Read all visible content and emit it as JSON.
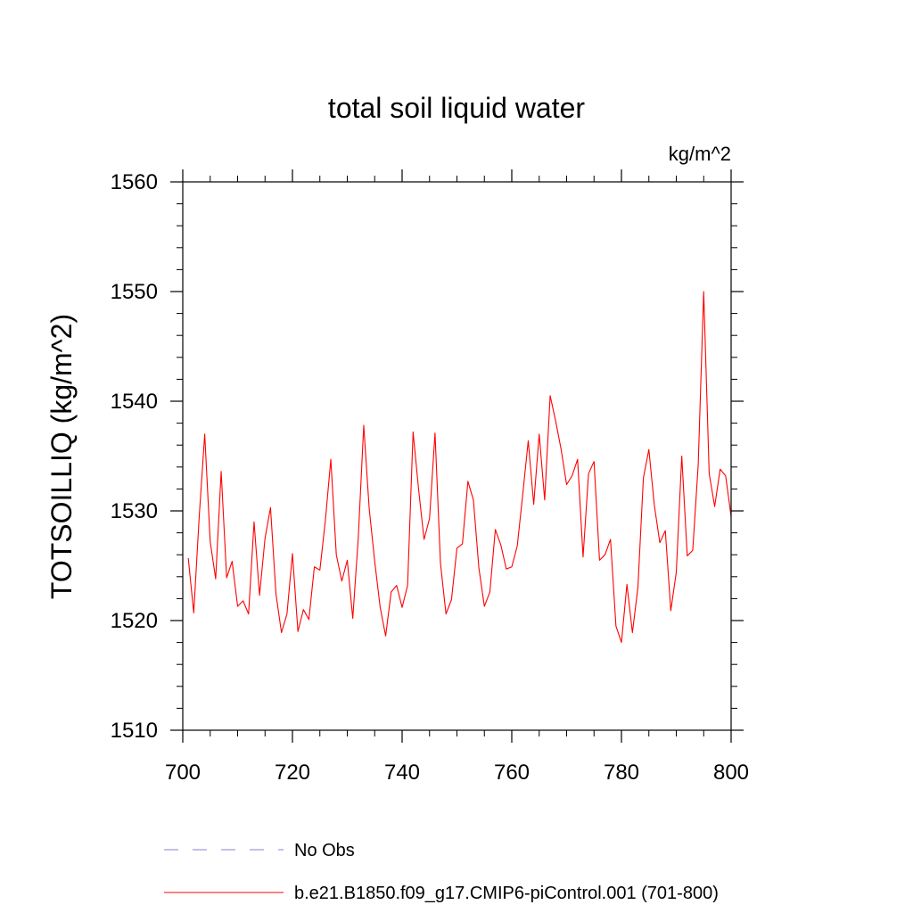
{
  "chart_data": {
    "type": "line",
    "title": "total soil liquid water",
    "units": "kg/m^2",
    "xlabel": "",
    "ylabel": "TOTSOILLIQ  (kg/m^2)",
    "xlim": [
      700,
      800
    ],
    "ylim": [
      1510,
      1560
    ],
    "x_ticks": [
      700,
      720,
      740,
      760,
      780,
      800
    ],
    "y_ticks": [
      1510,
      1520,
      1530,
      1540,
      1550,
      1560
    ],
    "x_minor_step": 5,
    "y_minor_step": 2,
    "grid": false,
    "legend_position": "bottom",
    "series": [
      {
        "name": "No Obs",
        "color": "#8a7fd0",
        "style": "dashed",
        "values": []
      },
      {
        "name": "b.e21.B1850.f09_g17.CMIP6-piControl.001 (701-800)",
        "color": "#ff0000",
        "style": "solid",
        "x": [
          701,
          702,
          703,
          704,
          705,
          706,
          707,
          708,
          709,
          710,
          711,
          712,
          713,
          714,
          715,
          716,
          717,
          718,
          719,
          720,
          721,
          722,
          723,
          724,
          725,
          726,
          727,
          728,
          729,
          730,
          731,
          732,
          733,
          734,
          735,
          736,
          737,
          738,
          739,
          740,
          741,
          742,
          743,
          744,
          745,
          746,
          747,
          748,
          749,
          750,
          751,
          752,
          753,
          754,
          755,
          756,
          757,
          758,
          759,
          760,
          761,
          762,
          763,
          764,
          765,
          766,
          767,
          768,
          769,
          770,
          771,
          772,
          773,
          774,
          775,
          776,
          777,
          778,
          779,
          780,
          781,
          782,
          783,
          784,
          785,
          786,
          787,
          788,
          789,
          790,
          791,
          792,
          793,
          794,
          795,
          796,
          797,
          798,
          799,
          800
        ],
        "values": [
          1525.7,
          1520.7,
          1529.5,
          1537.0,
          1527.2,
          1523.8,
          1533.6,
          1523.9,
          1525.4,
          1521.3,
          1521.8,
          1520.6,
          1529.0,
          1522.3,
          1527.5,
          1530.3,
          1522.4,
          1518.9,
          1520.6,
          1526.1,
          1519.0,
          1521.0,
          1520.1,
          1524.9,
          1524.6,
          1529.1,
          1534.7,
          1526.0,
          1523.6,
          1525.5,
          1520.2,
          1527.5,
          1537.8,
          1530.2,
          1525.4,
          1521.2,
          1518.6,
          1522.6,
          1523.2,
          1521.2,
          1523.2,
          1537.2,
          1532.0,
          1527.4,
          1529.3,
          1537.1,
          1525.2,
          1520.6,
          1521.9,
          1526.6,
          1527.0,
          1532.7,
          1531.0,
          1524.8,
          1521.3,
          1522.6,
          1528.3,
          1526.9,
          1524.7,
          1524.9,
          1526.8,
          1531.5,
          1536.4,
          1530.6,
          1537.0,
          1531.0,
          1540.5,
          1538.2,
          1535.6,
          1532.4,
          1533.2,
          1534.7,
          1525.8,
          1533.4,
          1534.5,
          1525.5,
          1526.0,
          1527.4,
          1519.5,
          1518.0,
          1523.3,
          1518.9,
          1523.0,
          1533.0,
          1535.6,
          1530.5,
          1527.1,
          1528.2,
          1520.9,
          1524.4,
          1535.0,
          1525.9,
          1526.4,
          1534.2,
          1550.0,
          1533.4,
          1530.4,
          1533.8,
          1533.2,
          1529.5
        ]
      }
    ]
  }
}
